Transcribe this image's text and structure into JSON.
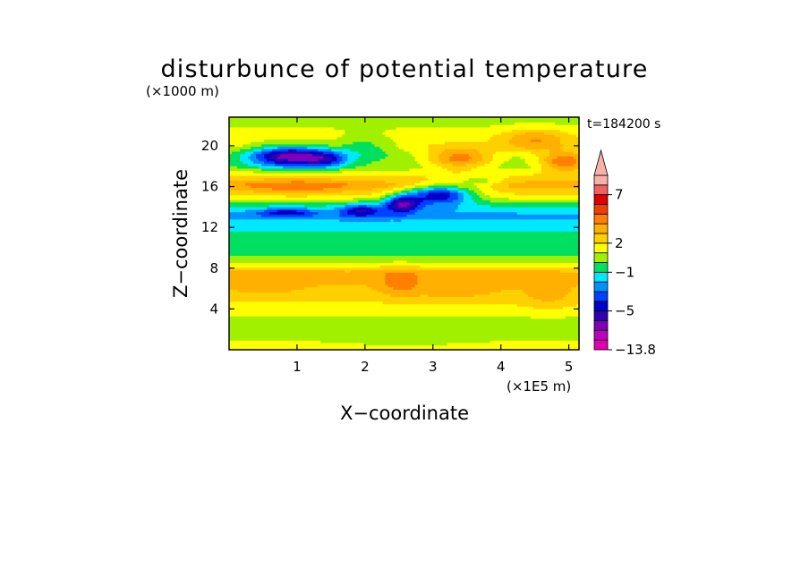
{
  "chart_data": {
    "type": "heatmap",
    "title": "disturbunce of potential temperature",
    "time_label": "t=184200 s",
    "xlabel": "X−coordinate",
    "ylabel": "Z−coordinate",
    "x_unit": "(×1E5 m)",
    "y_unit": "(×1000 m)",
    "xlim": [
      0,
      5.15
    ],
    "ylim": [
      0,
      22.8
    ],
    "xticks": [
      "1",
      "2",
      "3",
      "4",
      "5"
    ],
    "xtick_values": [
      1,
      2,
      3,
      4,
      5
    ],
    "yticks": [
      "4",
      "8",
      "12",
      "16",
      "20"
    ],
    "ytick_values": [
      4,
      8,
      12,
      16,
      20
    ],
    "colorbar": {
      "min": -13.8,
      "extend": "max",
      "labels": [
        "7",
        "2",
        "−1",
        "−5",
        "−13.8"
      ],
      "label_values": [
        7,
        2,
        -1,
        -5,
        -13.8
      ],
      "levels": [
        {
          "lo": -13.8,
          "hi": -8,
          "color": "#e000b0"
        },
        {
          "lo": -8,
          "hi": -7,
          "color": "#c000c0"
        },
        {
          "lo": -7,
          "hi": -6,
          "color": "#8000b8"
        },
        {
          "lo": -6,
          "hi": -5,
          "color": "#3000b0"
        },
        {
          "lo": -5,
          "hi": -4,
          "color": "#0000c8"
        },
        {
          "lo": -4,
          "hi": -3,
          "color": "#0040ff"
        },
        {
          "lo": -3,
          "hi": -2,
          "color": "#0090ff"
        },
        {
          "lo": -2,
          "hi": -1,
          "color": "#00e8ff"
        },
        {
          "lo": -1,
          "hi": 0,
          "color": "#00e060"
        },
        {
          "lo": 0,
          "hi": 1,
          "color": "#a0f000"
        },
        {
          "lo": 1,
          "hi": 2,
          "color": "#ffff00"
        },
        {
          "lo": 2,
          "hi": 3,
          "color": "#ffd000"
        },
        {
          "lo": 3,
          "hi": 4,
          "color": "#ffb000"
        },
        {
          "lo": 4,
          "hi": 5,
          "color": "#ff8000"
        },
        {
          "lo": 5,
          "hi": 6,
          "color": "#f04000"
        },
        {
          "lo": 6,
          "hi": 7,
          "color": "#e00000"
        },
        {
          "lo": 7,
          "hi": 8,
          "color": "#f06060"
        },
        {
          "lo": 8,
          "hi": 10,
          "color": "#f8b0a8"
        }
      ]
    },
    "field": {
      "base_profile": [
        [
          0,
          1.6
        ],
        [
          2,
          0.3
        ],
        [
          3.5,
          1.1
        ],
        [
          5.5,
          2.5
        ],
        [
          7.5,
          3.5
        ],
        [
          8.5,
          1.2
        ],
        [
          9.5,
          -0.4
        ],
        [
          11,
          -0.6
        ],
        [
          12,
          -1.3
        ],
        [
          13.2,
          -2.3
        ],
        [
          14,
          -1.2
        ],
        [
          15,
          1.5
        ],
        [
          16.2,
          3.6
        ],
        [
          17,
          2.2
        ],
        [
          18,
          0.3
        ],
        [
          19,
          0.4
        ],
        [
          20,
          1.6
        ],
        [
          21,
          1.5
        ],
        [
          22.8,
          0.4
        ]
      ],
      "anomalies": [
        {
          "x": 0.9,
          "z": 19.0,
          "sx": 0.42,
          "sz": 0.75,
          "a": -7.0
        },
        {
          "x": 1.45,
          "z": 18.7,
          "sx": 0.22,
          "sz": 0.6,
          "a": -3.0
        },
        {
          "x": 0.85,
          "z": 13.5,
          "sx": 0.3,
          "sz": 0.28,
          "a": -3.0
        },
        {
          "x": 1.95,
          "z": 13.7,
          "sx": 0.22,
          "sz": 0.45,
          "a": -3.5
        },
        {
          "x": 2.55,
          "z": 14.4,
          "sx": 0.18,
          "sz": 0.6,
          "a": -5.5
        },
        {
          "x": 3.1,
          "z": 15.3,
          "sx": 0.35,
          "sz": 0.7,
          "a": -6.5
        },
        {
          "x": 3.4,
          "z": 18.8,
          "sx": 0.35,
          "sz": 0.75,
          "a": 4.0
        },
        {
          "x": 4.95,
          "z": 18.5,
          "sx": 0.28,
          "sz": 0.7,
          "a": 4.5
        },
        {
          "x": 4.5,
          "z": 20.6,
          "sx": 0.35,
          "sz": 0.8,
          "a": 2.5
        },
        {
          "x": 1.0,
          "z": 16.0,
          "sx": 0.55,
          "sz": 0.55,
          "a": 1.5
        },
        {
          "x": 2.0,
          "z": 20.0,
          "sx": 0.3,
          "sz": 0.8,
          "a": -1.8
        },
        {
          "x": 3.7,
          "z": 16.5,
          "sx": 0.25,
          "sz": 0.45,
          "a": -2.0
        },
        {
          "x": 2.5,
          "z": 6.5,
          "sx": 0.2,
          "sz": 0.9,
          "a": 1.4
        },
        {
          "x": 3.3,
          "z": 6.0,
          "sx": 0.45,
          "sz": 0.9,
          "a": 1.0
        },
        {
          "x": 0.5,
          "z": 6.5,
          "sx": 0.4,
          "sz": 0.8,
          "a": 0.8
        },
        {
          "x": 4.7,
          "z": 5.0,
          "sx": 0.3,
          "sz": 0.8,
          "a": 1.0
        },
        {
          "x": 2.6,
          "z": 1.2,
          "sx": 0.6,
          "sz": 0.6,
          "a": -0.6
        }
      ]
    }
  }
}
